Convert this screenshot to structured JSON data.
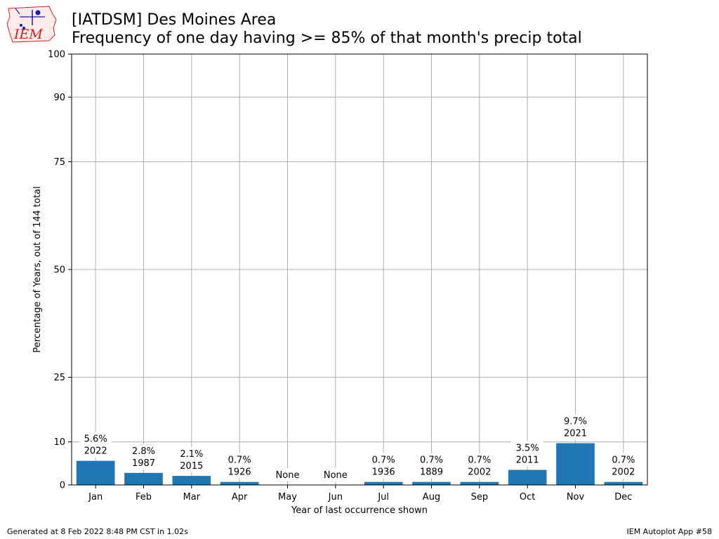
{
  "header": {
    "title_line1": "[IATDSM] Des Moines Area",
    "title_line2": "Frequency of one day having >= 85% of that month's precip total"
  },
  "logo": {
    "text": "IEM",
    "icon": "iowa-state-outline-icon"
  },
  "footer": {
    "left": "Generated at 8 Feb 2022 8:48 PM CST in 1.02s",
    "right": "IEM Autoplot App #58"
  },
  "colors": {
    "bar": "#1f77b4",
    "grid": "#b0b0b0",
    "logo_red": "#cc2222",
    "logo_blue": "#1a1aaa"
  },
  "chart_data": {
    "type": "bar",
    "title": "[IATDSM] Des Moines Area\nFrequency of one day having >= 85% of that month's precip total",
    "xlabel": "Year of last occurrence shown",
    "ylabel": "Percentage of Years, out of 144 total",
    "ylim": [
      0,
      100
    ],
    "yticks": [
      0,
      10,
      25,
      50,
      75,
      90,
      100
    ],
    "grid": true,
    "categories": [
      "Jan",
      "Feb",
      "Mar",
      "Apr",
      "May",
      "Jun",
      "Jul",
      "Aug",
      "Sep",
      "Oct",
      "Nov",
      "Dec"
    ],
    "values": [
      5.6,
      2.8,
      2.1,
      0.7,
      0,
      0,
      0.7,
      0.7,
      0.7,
      3.5,
      9.7,
      0.7
    ],
    "labels": [
      [
        "5.6%",
        "2022"
      ],
      [
        "2.8%",
        "1987"
      ],
      [
        "2.1%",
        "2015"
      ],
      [
        "0.7%",
        "1926"
      ],
      [
        "None"
      ],
      [
        "None"
      ],
      [
        "0.7%",
        "1936"
      ],
      [
        "0.7%",
        "1889"
      ],
      [
        "0.7%",
        "2002"
      ],
      [
        "3.5%",
        "2011"
      ],
      [
        "9.7%",
        "2021"
      ],
      [
        "0.7%",
        "2002"
      ]
    ]
  }
}
